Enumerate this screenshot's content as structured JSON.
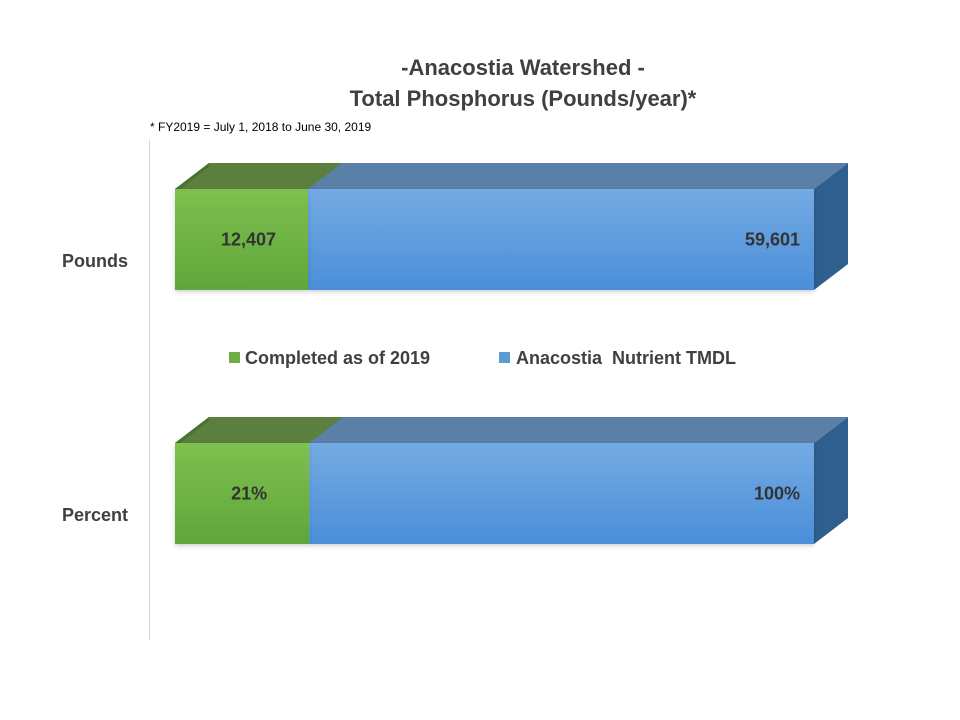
{
  "chart_data": {
    "type": "bar",
    "orientation": "horizontal",
    "stacked": true,
    "three_d": true,
    "title": "-Anacostia Watershed -",
    "subtitle": "Total Phosphorus (Pounds/year)*",
    "note": "* FY2019 = July 1, 2018 to June 30, 2019",
    "categories": [
      "Pounds",
      "Percent"
    ],
    "series": [
      {
        "name": "Completed as of 2019",
        "color": "#70ad47",
        "values": [
          12407,
          21
        ],
        "labels": [
          "12,407",
          "21%"
        ]
      },
      {
        "name": "Anacostia  Nutrient TMDL",
        "color": "#5b9bd5",
        "values": [
          59601,
          100
        ],
        "labels": [
          "59,601",
          "100%"
        ]
      }
    ],
    "legend_position": "middle",
    "grid": false
  }
}
